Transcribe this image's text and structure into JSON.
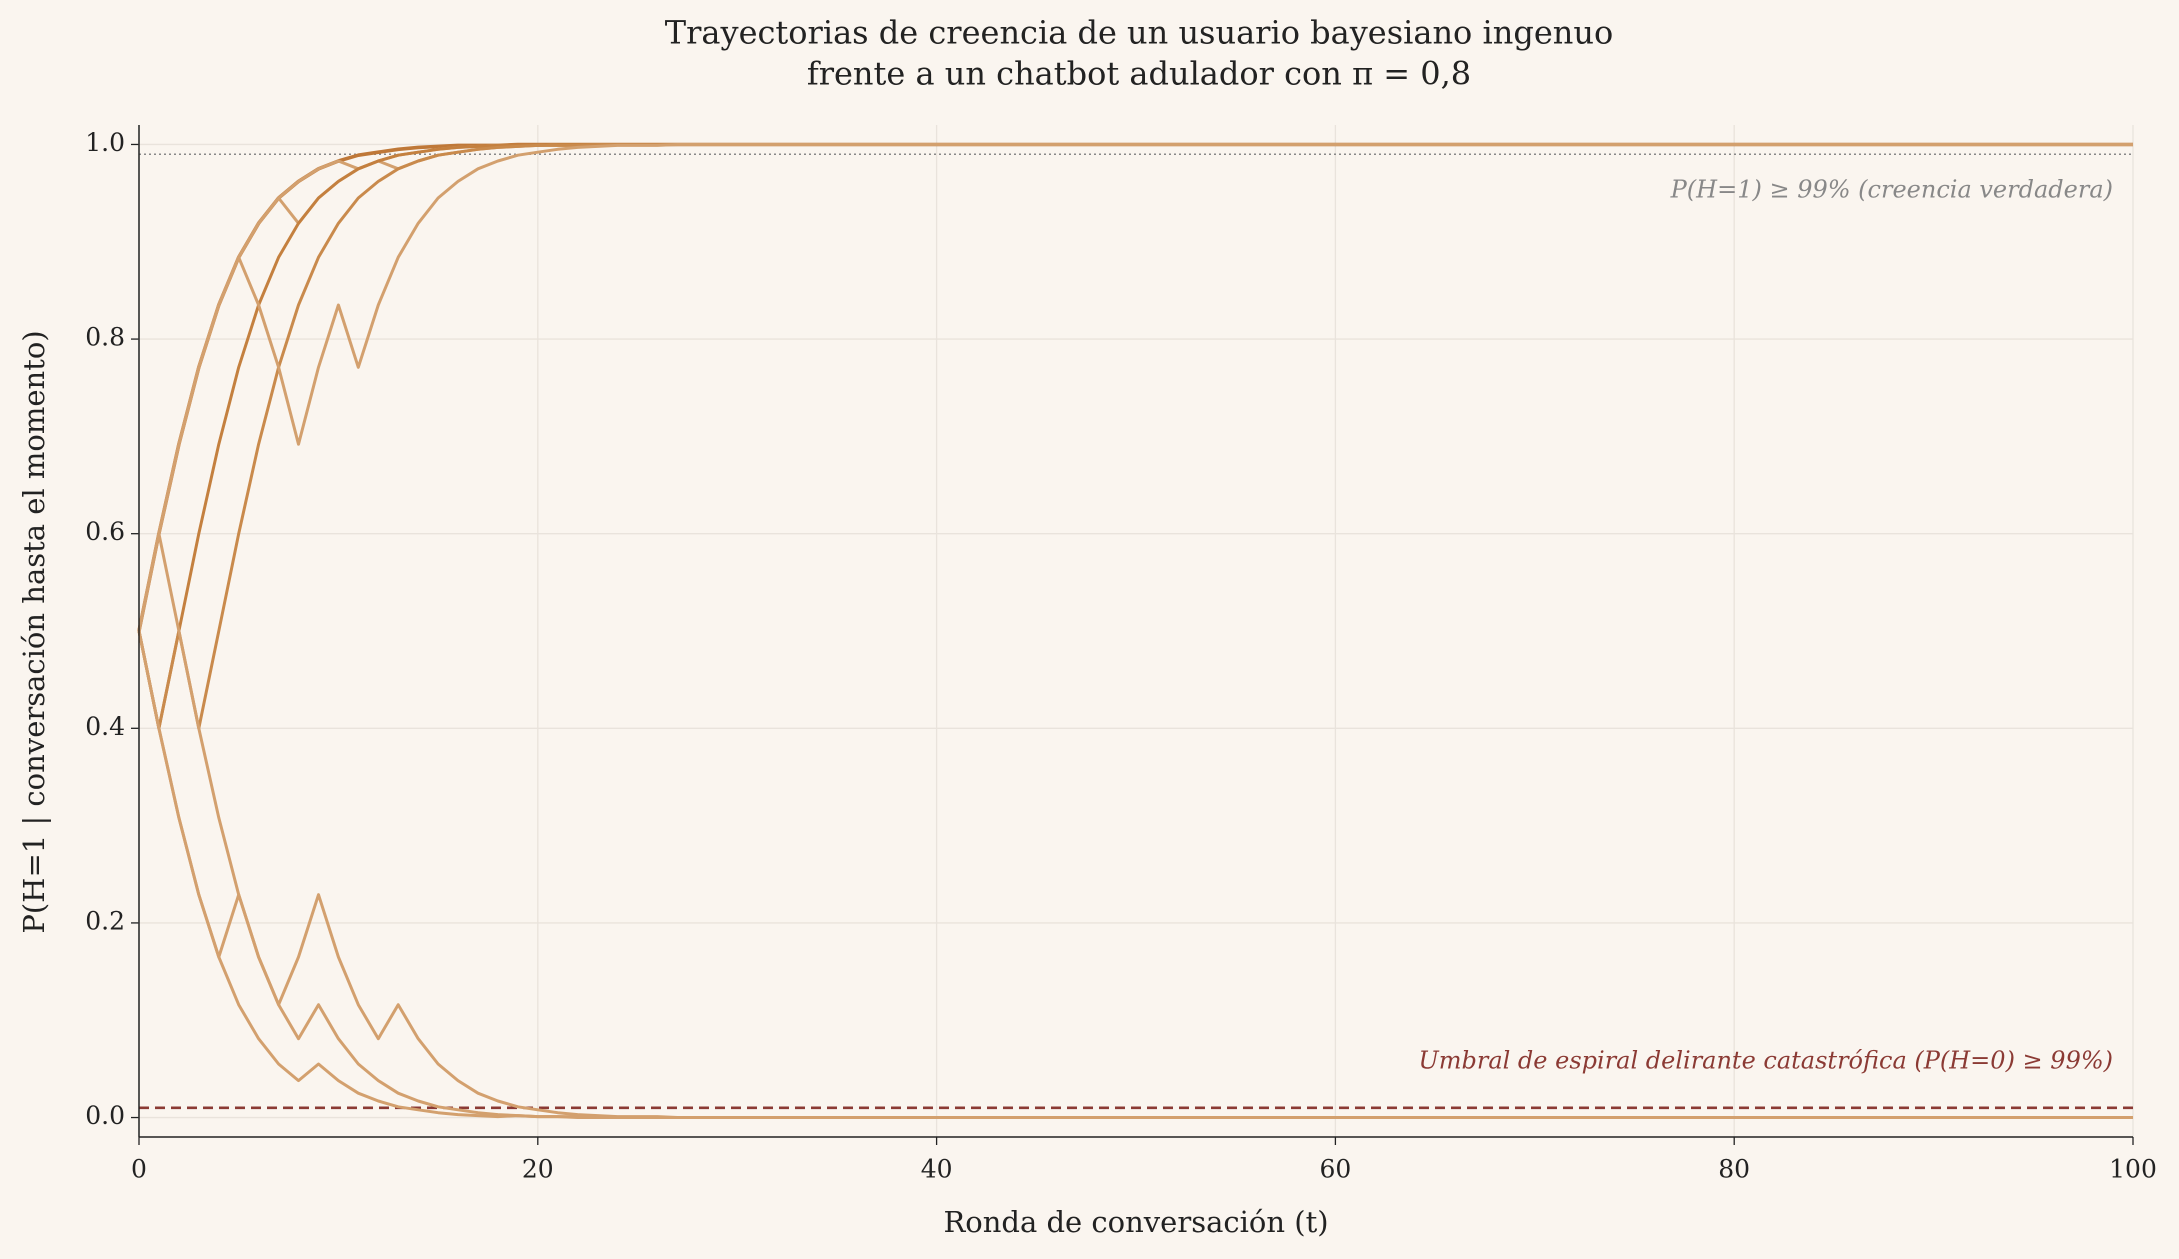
{
  "chart_data": {
    "type": "line",
    "title": [
      "Trayectorias de creencia de un usuario bayesiano ingenuo",
      "frente a un chatbot adulador con π = 0,8"
    ],
    "xlabel": "Ronda de conversación  (t)",
    "ylabel": "P(H=1 | conversación hasta el momento)",
    "x": [
      0,
      1,
      2,
      3,
      4,
      5,
      6,
      7,
      8,
      9,
      10,
      11,
      12,
      13,
      14,
      15,
      16,
      17,
      18,
      19,
      20,
      21,
      22,
      23,
      24,
      25,
      26,
      27,
      28,
      29,
      30,
      100
    ],
    "series": [
      {
        "color": "#bf7838",
        "values": [
          0.5,
          0.6,
          0.692,
          0.771,
          0.835,
          0.884,
          0.919,
          0.945,
          0.962,
          0.975,
          0.983,
          0.989,
          0.992,
          0.995,
          0.997,
          0.998,
          0.999,
          0.999,
          0.999,
          1,
          1,
          1,
          1,
          1,
          1,
          1,
          1,
          1,
          1,
          1,
          1,
          1
        ]
      },
      {
        "color": "#d3a06e",
        "values": [
          0.5,
          0.6,
          0.692,
          0.771,
          0.835,
          0.884,
          0.919,
          0.945,
          0.919,
          0.945,
          0.962,
          0.975,
          0.983,
          0.989,
          0.992,
          0.995,
          0.997,
          0.998,
          0.999,
          0.999,
          0.999,
          1,
          1,
          1,
          1,
          1,
          1,
          1,
          1,
          1,
          1,
          1
        ]
      },
      {
        "color": "#d3a06e",
        "values": [
          0.5,
          0.6,
          0.692,
          0.771,
          0.835,
          0.884,
          0.919,
          0.945,
          0.962,
          0.975,
          0.983,
          0.975,
          0.983,
          0.975,
          0.983,
          0.989,
          0.992,
          0.995,
          0.997,
          0.998,
          0.999,
          0.999,
          0.999,
          1,
          1,
          1,
          1,
          1,
          1,
          1,
          1,
          1
        ]
      },
      {
        "color": "#c4803f",
        "values": [
          0.5,
          0.4,
          0.5,
          0.6,
          0.692,
          0.771,
          0.835,
          0.884,
          0.919,
          0.945,
          0.962,
          0.975,
          0.983,
          0.989,
          0.992,
          0.995,
          0.997,
          0.998,
          0.999,
          0.999,
          0.999,
          1,
          1,
          1,
          1,
          1,
          1,
          1,
          1,
          1,
          1,
          1
        ]
      },
      {
        "color": "#c98a4c",
        "values": [
          0.5,
          0.4,
          0.5,
          0.4,
          0.5,
          0.6,
          0.692,
          0.771,
          0.835,
          0.884,
          0.919,
          0.945,
          0.962,
          0.975,
          0.983,
          0.989,
          0.992,
          0.995,
          0.997,
          0.998,
          0.999,
          0.999,
          0.999,
          1,
          1,
          1,
          1,
          1,
          1,
          1,
          1,
          1
        ]
      },
      {
        "color": "#d3a06e",
        "values": [
          0.5,
          0.6,
          0.692,
          0.771,
          0.835,
          0.884,
          0.835,
          0.771,
          0.692,
          0.771,
          0.835,
          0.771,
          0.835,
          0.884,
          0.919,
          0.945,
          0.962,
          0.975,
          0.983,
          0.989,
          0.992,
          0.995,
          0.997,
          0.998,
          0.999,
          0.999,
          0.999,
          1,
          1,
          1,
          1,
          1
        ]
      },
      {
        "color": "#d3a06e",
        "values": [
          0.5,
          0.4,
          0.308,
          0.229,
          0.165,
          0.229,
          0.165,
          0.116,
          0.081,
          0.116,
          0.081,
          0.055,
          0.038,
          0.025,
          0.017,
          0.011,
          0.008,
          0.005,
          0.003,
          0.002,
          0.001,
          0.001,
          0.001,
          0,
          0,
          0,
          0,
          0,
          0,
          0,
          0,
          0
        ]
      },
      {
        "color": "#d3a06e",
        "values": [
          0.5,
          0.6,
          0.5,
          0.4,
          0.308,
          0.229,
          0.165,
          0.116,
          0.165,
          0.229,
          0.165,
          0.116,
          0.081,
          0.116,
          0.081,
          0.055,
          0.038,
          0.025,
          0.017,
          0.011,
          0.008,
          0.005,
          0.003,
          0.002,
          0.001,
          0.001,
          0.001,
          0,
          0,
          0,
          0,
          0
        ]
      },
      {
        "color": "#d3a06e",
        "values": [
          0.5,
          0.4,
          0.308,
          0.229,
          0.165,
          0.116,
          0.081,
          0.055,
          0.038,
          0.055,
          0.038,
          0.025,
          0.017,
          0.011,
          0.008,
          0.005,
          0.003,
          0.002,
          0.001,
          0.002,
          0.001,
          0.001,
          0,
          0,
          0,
          0,
          0,
          0,
          0,
          0,
          0,
          0
        ]
      }
    ],
    "reference_lines": [
      {
        "value": 0.99,
        "label": "P(H=1) ≥ 99%  (creencia verdadera)",
        "color": "#888888",
        "style": "dotted"
      },
      {
        "value": 0.01,
        "label": "Umbral de espiral delirante catastrófica  (P(H=0) ≥ 99%)",
        "color": "#8b3a34",
        "style": "dashed"
      }
    ],
    "xlim": [
      0,
      100
    ],
    "xticks": [
      0,
      20,
      40,
      60,
      80,
      100
    ],
    "ylim": [
      -0.02,
      1.02
    ],
    "yticks": [
      {
        "value": 0,
        "label": "0.0"
      },
      0.2,
      0.4,
      0.6,
      0.8,
      {
        "value": 1,
        "label": "1.0"
      }
    ],
    "grid": true
  }
}
